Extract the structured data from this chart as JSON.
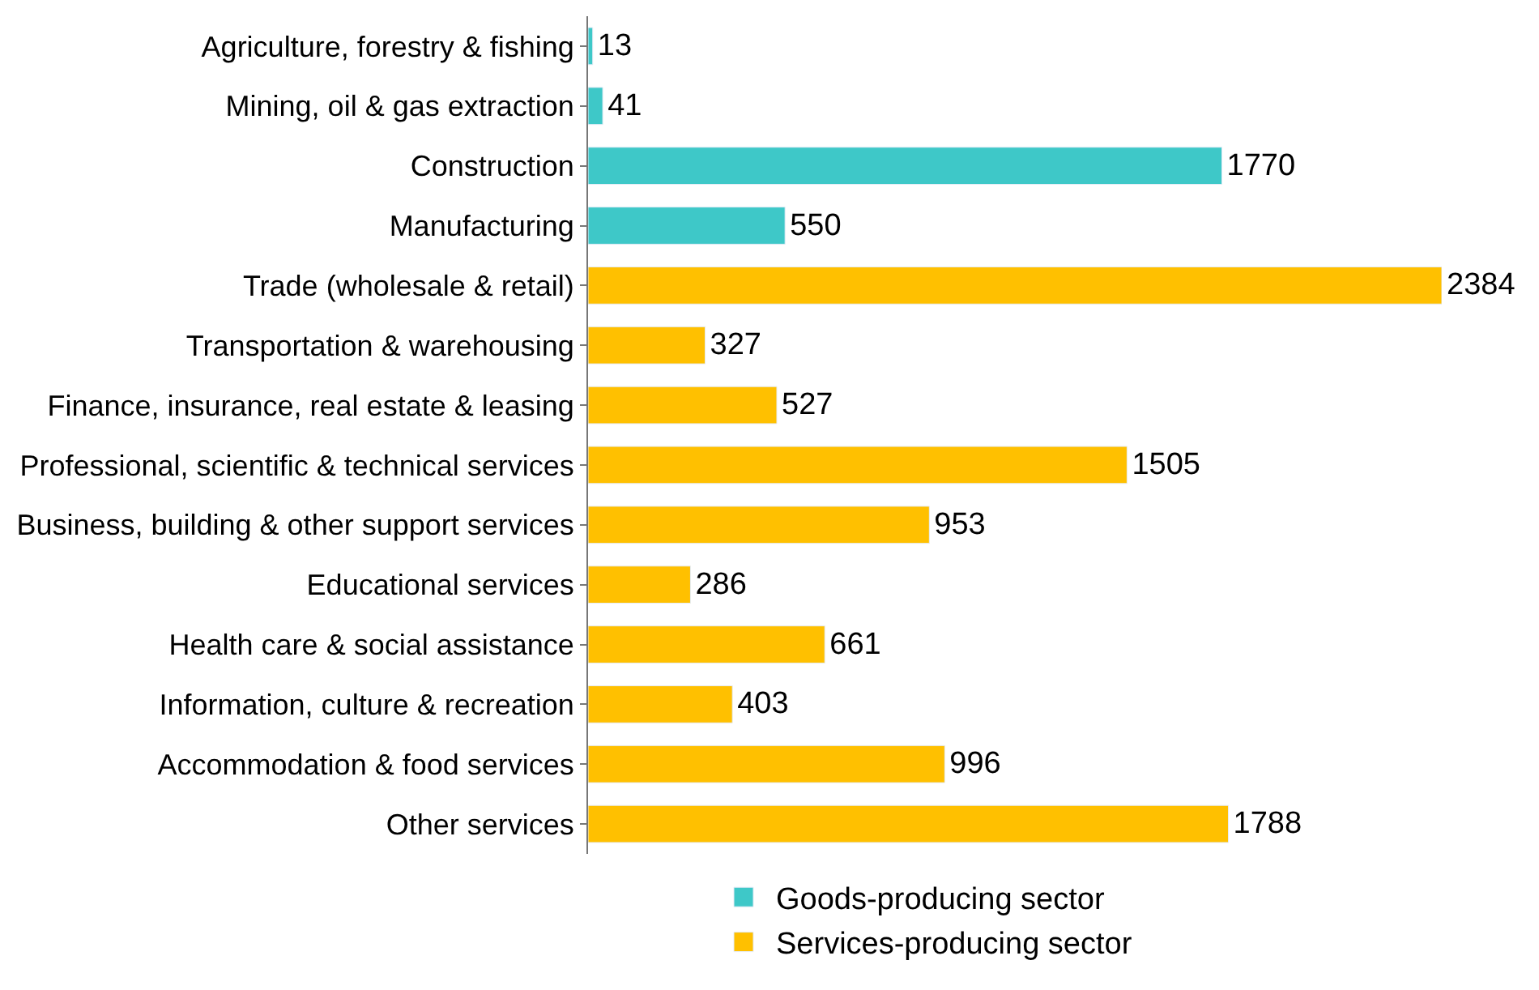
{
  "chart_data": {
    "type": "bar",
    "orientation": "horizontal",
    "data_labels": true,
    "legend": "bottom",
    "categories": [
      "Agriculture, forestry & fishing",
      "Mining, oil & gas extraction",
      "Construction",
      "Manufacturing",
      "Trade (wholesale & retail)",
      "Transportation & warehousing",
      "Finance, insurance, real estate & leasing",
      "Professional, scientific & technical services",
      "Business, building & other support services",
      "Educational services",
      "Health care & social assistance",
      "Information, culture & recreation",
      "Accommodation & food services",
      "Other services"
    ],
    "series": [
      {
        "name": "Goods-producing sector",
        "color": "#3ec8c8",
        "values": [
          13,
          41,
          1770,
          550,
          null,
          null,
          null,
          null,
          null,
          null,
          null,
          null,
          null,
          null
        ]
      },
      {
        "name": "Services-producing sector",
        "color": "#ffc000",
        "values": [
          null,
          null,
          null,
          null,
          2384,
          327,
          527,
          1505,
          953,
          286,
          661,
          403,
          996,
          1788
        ]
      }
    ]
  }
}
